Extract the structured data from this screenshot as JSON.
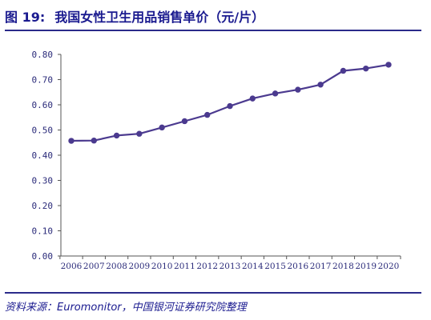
{
  "figure": {
    "title_number": "图 19:",
    "title_text": "我国女性卫生用品销售单价（元/片）",
    "source": "资料来源：Euromonitor，中国银河证券研究院整理"
  },
  "colors": {
    "line": "#4b3a8f",
    "axis": "#555555",
    "title": "#1a1a8f",
    "rule": "#2b2b8a"
  },
  "chart_data": {
    "type": "line",
    "title": "我国女性卫生用品销售单价（元/片）",
    "xlabel": "",
    "ylabel": "",
    "x": [
      "2006",
      "2007",
      "2008",
      "2009",
      "2010",
      "2011",
      "2012",
      "2013",
      "2014",
      "2015",
      "2016",
      "2017",
      "2018",
      "2019",
      "2020"
    ],
    "series": [
      {
        "values": [
          0.457,
          0.458,
          0.478,
          0.485,
          0.51,
          0.535,
          0.56,
          0.595,
          0.625,
          0.645,
          0.66,
          0.68,
          0.735,
          0.744,
          0.759
        ]
      }
    ],
    "ylim": [
      0,
      0.8
    ],
    "y_ticks": [
      "0.00",
      "0.10",
      "0.20",
      "0.30",
      "0.40",
      "0.50",
      "0.60",
      "0.70",
      "0.80"
    ],
    "grid": false,
    "legend": "none",
    "markers": "circle"
  }
}
